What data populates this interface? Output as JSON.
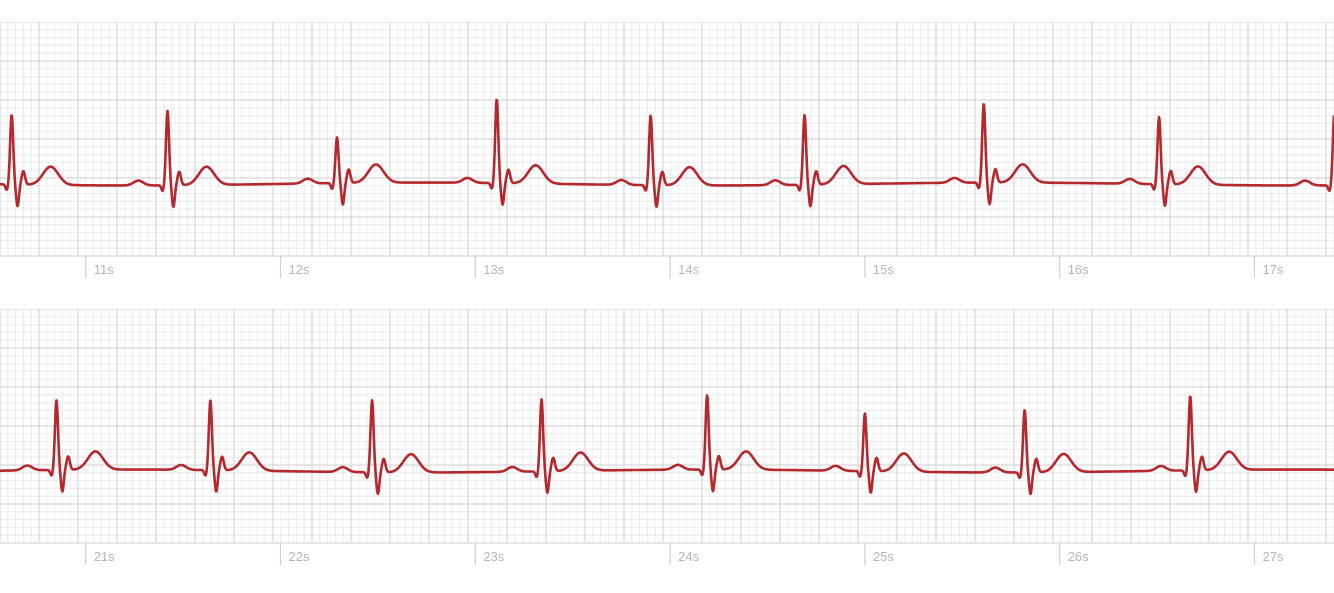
{
  "chart_data": [
    {
      "type": "line",
      "xlabel": "",
      "ylabel": "",
      "grid": true,
      "x_tick_labels": [
        "11s",
        "12s",
        "13s",
        "14s",
        "15s",
        "16s",
        "17s"
      ],
      "x_tick_values": [
        11,
        12,
        13,
        14,
        15,
        16,
        17
      ],
      "xlim": [
        10.56,
        17.41
      ],
      "r_peaks_s": [
        10.62,
        11.42,
        12.29,
        13.11,
        13.9,
        14.69,
        15.61,
        16.51,
        17.41
      ],
      "r_amplitudes_mv": [
        1.45,
        1.55,
        0.95,
        1.75,
        1.45,
        1.45,
        1.65,
        1.4,
        1.5
      ]
    },
    {
      "type": "line",
      "xlabel": "",
      "ylabel": "",
      "grid": true,
      "x_tick_labels": [
        "21s",
        "22s",
        "23s",
        "24s",
        "25s",
        "26s",
        "27s"
      ],
      "x_tick_values": [
        21,
        22,
        23,
        24,
        25,
        26,
        27
      ],
      "xlim": [
        20.56,
        27.41
      ],
      "r_peaks_s": [
        20.85,
        21.64,
        22.47,
        23.34,
        24.19,
        25.0,
        25.82,
        26.67
      ],
      "r_amplitudes_mv": [
        1.45,
        1.45,
        1.5,
        1.5,
        1.55,
        1.2,
        1.3,
        1.55
      ]
    }
  ],
  "colors": {
    "trace": "#b5282e",
    "grid_major": "#cfcfcf",
    "grid_minor": "#ececec",
    "tick_label": "#b5b5b5"
  }
}
